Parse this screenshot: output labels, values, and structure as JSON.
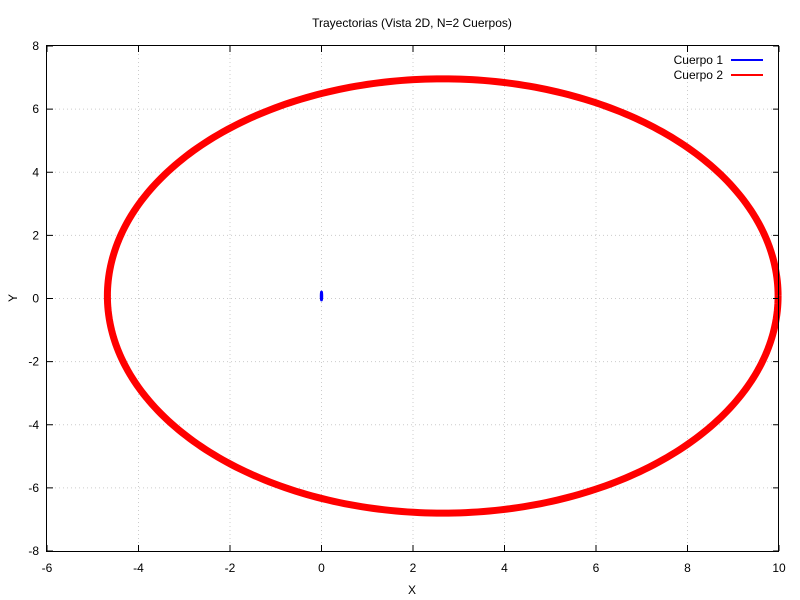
{
  "chart_data": {
    "type": "line",
    "title": "Trayectorias (Vista 2D, N=2 Cuerpos)",
    "xlabel": "X",
    "ylabel": "Y",
    "xlim": [
      -6,
      10
    ],
    "ylim": [
      -8,
      8
    ],
    "x_ticks": [
      -6,
      -4,
      -2,
      0,
      2,
      4,
      6,
      8,
      10
    ],
    "y_ticks": [
      -8,
      -6,
      -4,
      -2,
      0,
      2,
      4,
      6,
      8
    ],
    "grid": true,
    "legend_position": "top-right",
    "series": [
      {
        "name": "Cuerpo 1",
        "color": "#0000ff",
        "orbit": {
          "center_x": 0.0,
          "center_y": 0.08,
          "semi_axis_x": 0.01,
          "semi_axis_y": 0.13
        }
      },
      {
        "name": "Cuerpo 2",
        "color": "#ff0000",
        "orbit": {
          "center_x": 2.65,
          "center_y": 0.08,
          "semi_axis_x": 7.33,
          "semi_axis_y": 6.88
        }
      }
    ]
  }
}
